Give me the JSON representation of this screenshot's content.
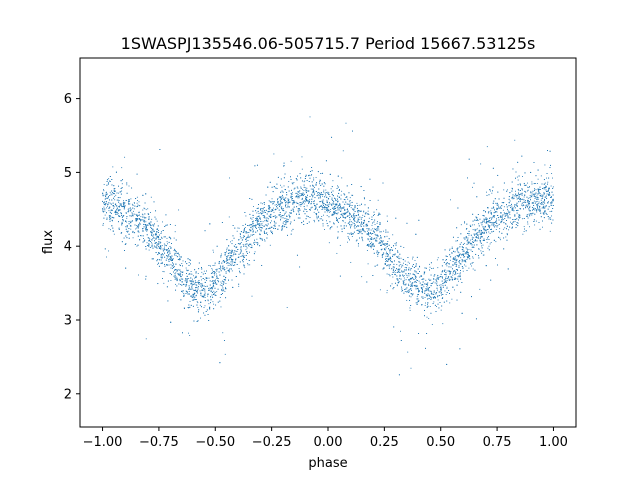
{
  "chart_data": {
    "type": "scatter",
    "title": "1SWASPJ135546.06-505715.7 Period 15667.53125s",
    "xlabel": "phase",
    "ylabel": "flux",
    "xlim": [
      -1.1,
      1.1
    ],
    "ylim": [
      1.55,
      6.55
    ],
    "x_ticks": [
      -1.0,
      -0.75,
      -0.5,
      -0.25,
      0.0,
      0.25,
      0.5,
      0.75,
      1.0
    ],
    "x_tick_labels": [
      "−1.00",
      "−0.75",
      "−0.50",
      "−0.25",
      "0.00",
      "0.25",
      "0.50",
      "0.75",
      "1.00"
    ],
    "y_ticks": [
      2,
      3,
      4,
      5,
      6
    ],
    "y_tick_labels": [
      "2",
      "3",
      "4",
      "5",
      "6"
    ],
    "grid": false,
    "legend": "none",
    "point_color": "#1f77b4",
    "series": [
      {
        "x": [
          -1.0,
          -0.95,
          -0.9,
          -0.85,
          -0.8,
          -0.75,
          -0.7,
          -0.65,
          -0.6,
          -0.55,
          -0.5,
          -0.45,
          -0.4,
          -0.35,
          -0.3,
          -0.25,
          -0.2,
          -0.15,
          -0.1,
          -0.05,
          0.0,
          0.05,
          0.1,
          0.15,
          0.2,
          0.25,
          0.3,
          0.35,
          0.4,
          0.45,
          0.5,
          0.55,
          0.6,
          0.65,
          0.7,
          0.75,
          0.8,
          0.85,
          0.9,
          0.95,
          1.0
        ],
        "y": [
          4.6,
          4.55,
          4.45,
          4.35,
          4.25,
          4.05,
          3.85,
          3.6,
          3.45,
          3.4,
          3.5,
          3.7,
          3.95,
          4.15,
          4.3,
          4.45,
          4.55,
          4.6,
          4.65,
          4.65,
          4.6,
          4.5,
          4.4,
          4.3,
          4.15,
          3.95,
          3.75,
          3.55,
          3.45,
          3.4,
          3.5,
          3.7,
          3.9,
          4.1,
          4.25,
          4.4,
          4.5,
          4.55,
          4.6,
          4.62,
          4.6
        ]
      }
    ]
  }
}
